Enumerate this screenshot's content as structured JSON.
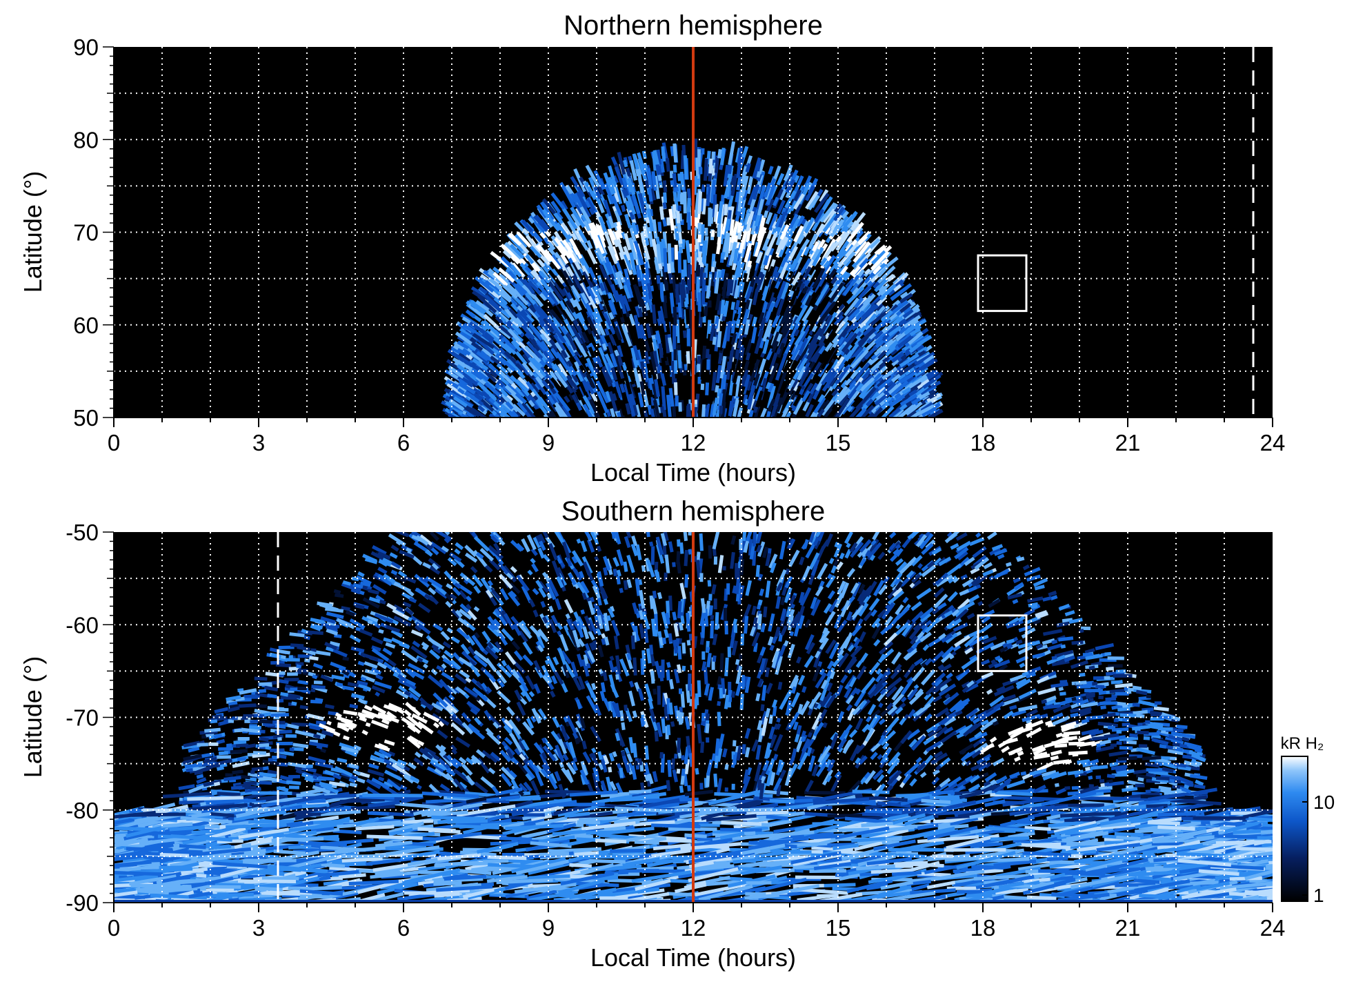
{
  "chart_data": [
    {
      "type": "heatmap",
      "title": "Northern hemisphere",
      "xlabel": "Local Time (hours)",
      "ylabel": "Latitude (°)",
      "xlim": [
        0,
        24
      ],
      "ylim": [
        50,
        90
      ],
      "xticks": [
        0,
        3,
        6,
        9,
        12,
        15,
        18,
        21,
        24
      ],
      "yticks": [
        50,
        60,
        70,
        80,
        90
      ],
      "grid": true,
      "background": "#000000",
      "colormap": "blue",
      "emission_region": {
        "lt_min": 7,
        "lt_max": 17,
        "lat_min": 50,
        "lat_max": 79
      },
      "bright_oval": {
        "lat": 70,
        "lt_center": 12
      },
      "noon_line": {
        "x": 12,
        "color": "#d23a10"
      },
      "dashed_line": {
        "x": 23.6,
        "color": "#ffffff"
      },
      "box": {
        "x0": 17.9,
        "x1": 18.9,
        "y0": 61.5,
        "y1": 67.5
      }
    },
    {
      "type": "heatmap",
      "title": "Southern hemisphere",
      "xlabel": "Local Time (hours)",
      "ylabel": "Latitude (°)",
      "xlim": [
        0,
        24
      ],
      "ylim": [
        -90,
        -50
      ],
      "xticks": [
        0,
        3,
        6,
        9,
        12,
        15,
        18,
        21,
        24
      ],
      "yticks": [
        -90,
        -80,
        -70,
        -60,
        -50
      ],
      "grid": true,
      "background": "#000000",
      "colormap": "blue",
      "bright_spots": [
        {
          "lt": 5.6,
          "lat": -71
        },
        {
          "lt": 19.2,
          "lat": -73
        }
      ],
      "noon_line": {
        "x": 12,
        "color": "#d23a10"
      },
      "dashed_line": {
        "x": 3.4,
        "color": "#ffffff"
      },
      "box": {
        "x0": 17.9,
        "x1": 18.9,
        "y0": -65,
        "y1": -59
      }
    }
  ],
  "colorbar": {
    "label": "kR H₂",
    "ticks": [
      "10",
      "1"
    ],
    "range": [
      1,
      30
    ],
    "scale": "log"
  }
}
